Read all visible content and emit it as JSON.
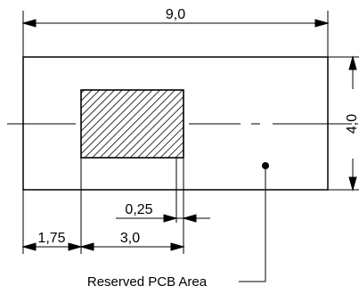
{
  "dimensions": {
    "overall_width": "9,0",
    "overall_height": "4,0",
    "left_offset": "1,75",
    "pad_width": "3,0",
    "small_offset": "0,25"
  },
  "callout": {
    "label": "Reserved PCB Area"
  },
  "colors": {
    "stroke": "#000000",
    "background": "#ffffff"
  }
}
